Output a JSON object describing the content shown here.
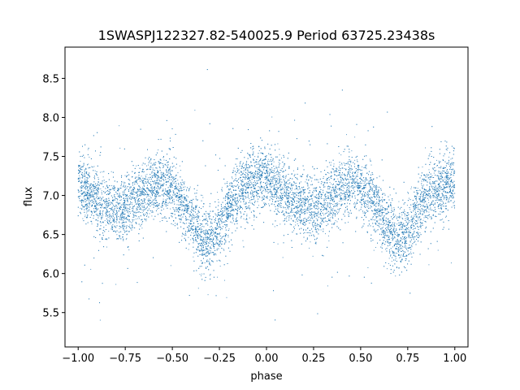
{
  "chart_data": {
    "type": "scatter",
    "title": "1SWASPJ122327.82-540025.9 Period 63725.23438s",
    "xlabel": "phase",
    "ylabel": "flux",
    "xlim": [
      -1.07,
      1.07
    ],
    "ylim": [
      5.06,
      8.9
    ],
    "x_ticks": [
      -1.0,
      -0.75,
      -0.5,
      -0.25,
      0.0,
      0.25,
      0.5,
      0.75,
      1.0
    ],
    "x_tick_labels": [
      "−1.00",
      "−0.75",
      "−0.50",
      "−0.25",
      "0.00",
      "0.25",
      "0.50",
      "0.75",
      "1.00"
    ],
    "y_ticks": [
      5.5,
      6.0,
      6.5,
      7.0,
      7.5,
      8.0,
      8.5
    ],
    "y_tick_labels": [
      "5.5",
      "6.0",
      "6.5",
      "7.0",
      "7.5",
      "8.0",
      "8.5"
    ],
    "grid": false,
    "legend": "none",
    "marker_color": "#1f77b4",
    "series": [
      {
        "x": [
          -1.0,
          -0.95,
          -0.9,
          -0.85,
          -0.8,
          -0.75,
          -0.7,
          -0.65,
          -0.6,
          -0.55,
          -0.5,
          -0.45,
          -0.4,
          -0.35,
          -0.3,
          -0.25,
          -0.2,
          -0.15,
          -0.1,
          -0.05,
          0.0,
          0.05,
          0.1,
          0.15,
          0.2,
          0.25,
          0.3,
          0.35,
          0.4,
          0.45,
          0.5,
          0.55,
          0.6,
          0.65,
          0.7,
          0.75,
          0.8,
          0.85,
          0.9,
          0.95,
          1.0
        ],
        "y": [
          7.15,
          7.05,
          6.95,
          6.85,
          6.8,
          6.85,
          6.95,
          7.05,
          7.12,
          7.15,
          7.05,
          6.9,
          6.7,
          6.5,
          6.4,
          6.55,
          6.85,
          7.05,
          7.15,
          7.2,
          7.2,
          7.1,
          7.0,
          6.9,
          6.85,
          6.85,
          6.9,
          7.0,
          7.1,
          7.15,
          7.1,
          6.95,
          6.75,
          6.55,
          6.4,
          6.5,
          6.8,
          7.0,
          7.1,
          7.15,
          7.2
        ]
      }
    ]
  }
}
